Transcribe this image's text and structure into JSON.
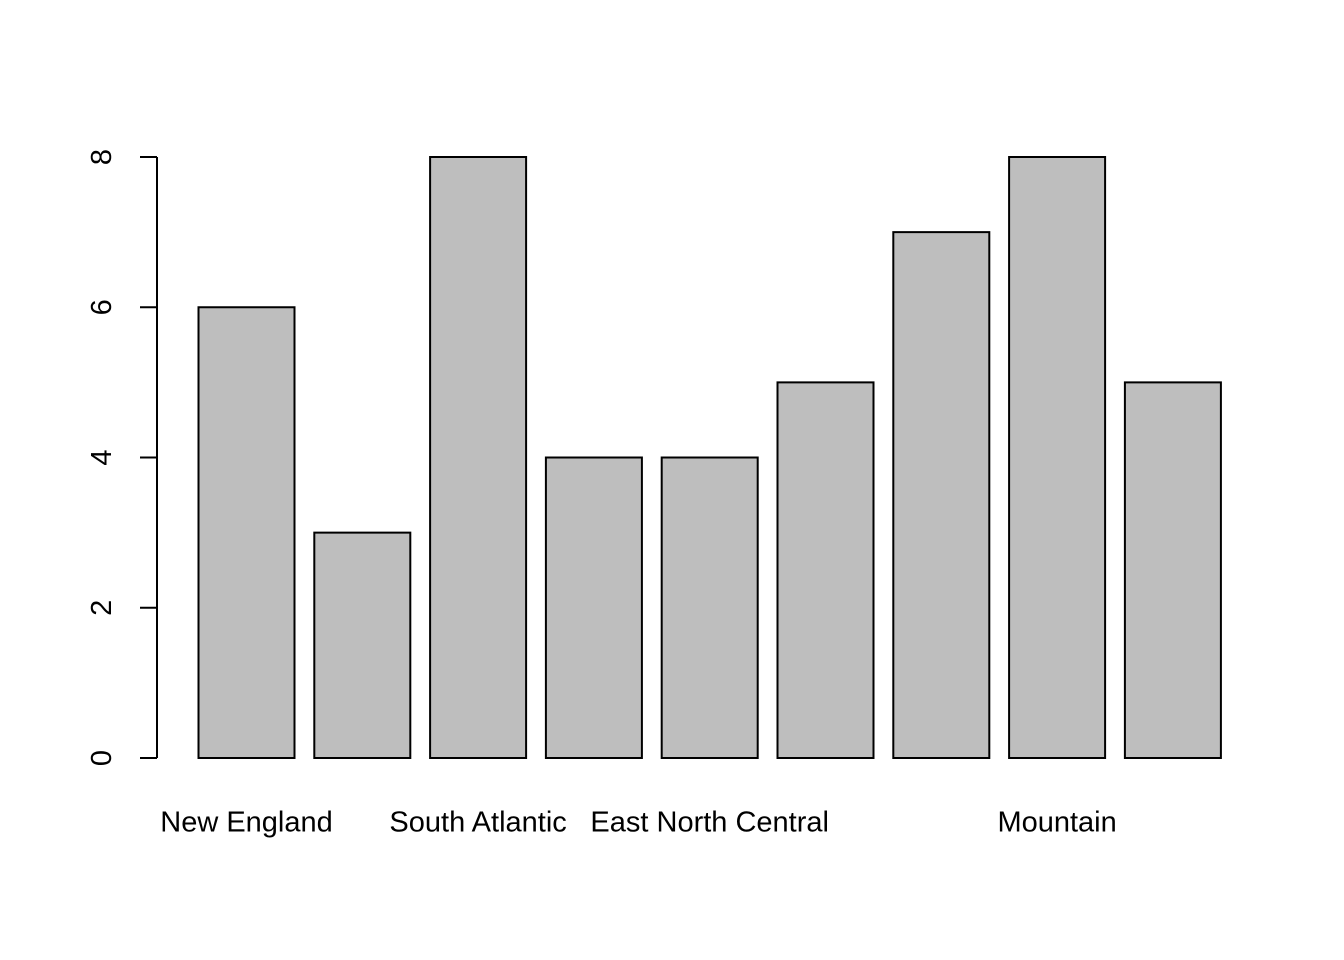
{
  "chart_data": {
    "type": "bar",
    "title": "",
    "xlabel": "",
    "ylabel": "",
    "categories": [
      "New England",
      "",
      "South Atlantic",
      "",
      "East North Central",
      "",
      "",
      "Mountain",
      ""
    ],
    "values": [
      6,
      3,
      8,
      4,
      4,
      5,
      7,
      8,
      5
    ],
    "ylim": [
      0,
      8
    ],
    "yticks": [
      "0",
      "2",
      "4",
      "6",
      "8"
    ],
    "grid": false,
    "legend": "none",
    "colors": {
      "bar_fill": "#bebebe",
      "bar_stroke": "#000000",
      "background": "#ffffff"
    }
  }
}
